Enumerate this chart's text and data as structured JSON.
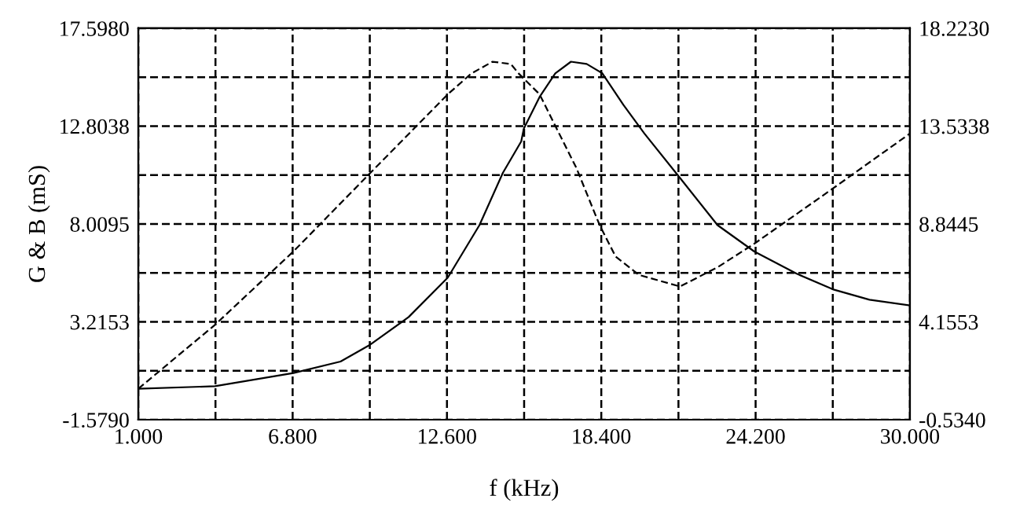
{
  "chart_data": {
    "type": "line",
    "xlabel": "f (kHz)",
    "ylabel": "G & B (mS)",
    "grid": true,
    "legend": false,
    "xlim": [
      1,
      30
    ],
    "ylim": [
      -1.579,
      17.598
    ],
    "y2lim": [
      -0.534,
      18.223
    ],
    "xticks": [
      {
        "value": 1,
        "label": "1.000"
      },
      {
        "value": 3.9,
        "label": null
      },
      {
        "value": 6.8,
        "label": "6.800"
      },
      {
        "value": 9.7,
        "label": null
      },
      {
        "value": 12.6,
        "label": "12.600"
      },
      {
        "value": 15.5,
        "label": null
      },
      {
        "value": 18.4,
        "label": "18.400"
      },
      {
        "value": 21.3,
        "label": null
      },
      {
        "value": 24.2,
        "label": "24.200"
      },
      {
        "value": 27.1,
        "label": null
      },
      {
        "value": 30,
        "label": "30.000"
      }
    ],
    "yticks": [
      {
        "value": -1.579,
        "label": "-1.5790"
      },
      {
        "value": 0.8181,
        "label": null
      },
      {
        "value": 3.2153,
        "label": "3.2153"
      },
      {
        "value": 5.6124,
        "label": null
      },
      {
        "value": 8.0095,
        "label": "8.0095"
      },
      {
        "value": 10.4067,
        "label": null
      },
      {
        "value": 12.8038,
        "label": "12.8038"
      },
      {
        "value": 15.2009,
        "label": null
      },
      {
        "value": 17.598,
        "label": "17.5980"
      }
    ],
    "y2ticks": [
      {
        "value": -0.534,
        "label": "-0.5340"
      },
      {
        "value": 1.8107,
        "label": null
      },
      {
        "value": 4.1553,
        "label": "4.1553"
      },
      {
        "value": 6.4999,
        "label": null
      },
      {
        "value": 8.8445,
        "label": "8.8445"
      },
      {
        "value": 11.1892,
        "label": null
      },
      {
        "value": 13.5338,
        "label": "13.5338"
      },
      {
        "value": 15.8784,
        "label": null
      },
      {
        "value": 18.223,
        "label": "18.2230"
      }
    ],
    "series": [
      {
        "color": "#000000",
        "line_style": "solid",
        "x": [
          1.0,
          3.88,
          6.83,
          8.6,
          9.72,
          11.16,
          12.63,
          13.82,
          14.7,
          15.39,
          15.49,
          16.08,
          16.67,
          17.26,
          17.85,
          18.44,
          19.23,
          20.02,
          21.36,
          22.77,
          24.15,
          25.73,
          27.1,
          28.48,
          30.0
        ],
        "values": [
          -0.06,
          0.06,
          0.71,
          1.27,
          2.1,
          3.45,
          5.38,
          7.95,
          10.51,
          12.05,
          12.69,
          14.23,
          15.39,
          15.96,
          15.85,
          15.39,
          13.85,
          12.44,
          10.26,
          7.95,
          6.66,
          5.58,
          4.81,
          4.3,
          4.02
        ]
      },
      {
        "color": "#000000",
        "line_style": "dashed",
        "axis": "y2",
        "x": [
          1.0,
          3.88,
          6.83,
          9.72,
          12.63,
          13.52,
          14.31,
          15.0,
          15.29,
          16.08,
          16.67,
          17.46,
          18.34,
          18.94,
          19.82,
          21.36,
          22.77,
          24.15,
          27.1,
          30.0
        ],
        "values": [
          0.95,
          4.01,
          7.53,
          11.29,
          15.06,
          16.06,
          16.62,
          16.51,
          16.06,
          15.06,
          13.55,
          11.54,
          8.78,
          7.28,
          6.4,
          5.85,
          6.77,
          7.9,
          10.54,
          13.18
        ]
      }
    ]
  }
}
